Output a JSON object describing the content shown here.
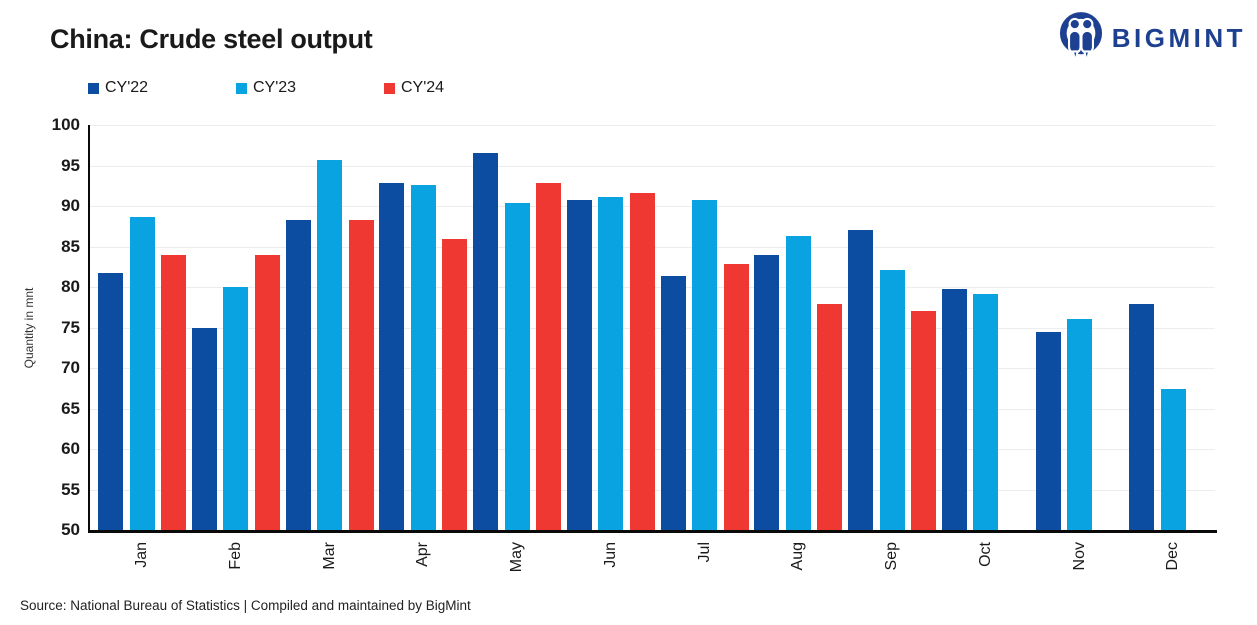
{
  "header": {
    "title": "China: Crude steel output",
    "brand": "BIGMINT",
    "brand_color": "#1D4091",
    "logo_icon": "bigmint-people-icon"
  },
  "legend": [
    {
      "label": "CY'22",
      "color": "#0C4DA2"
    },
    {
      "label": "CY'23",
      "color": "#0AA3E2"
    },
    {
      "label": "CY'24",
      "color": "#EE3831"
    }
  ],
  "footer": {
    "source": "Source: National Bureau of Statistics | Compiled and maintained by BigMint"
  },
  "chart_data": {
    "type": "bar",
    "title": "China: Crude steel output",
    "xlabel": "",
    "ylabel": "Quantity in mnt",
    "ylim": [
      50,
      100
    ],
    "yticks": [
      100,
      95,
      90,
      85,
      80,
      75,
      70,
      65,
      60,
      55,
      50
    ],
    "grid": true,
    "gridline_color": "#ededed",
    "legend_position": "top-left",
    "categories": [
      "Jan",
      "Feb",
      "Mar",
      "Apr",
      "May",
      "Jun",
      "Jul",
      "Aug",
      "Sep",
      "Oct",
      "Nov",
      "Dec"
    ],
    "series": [
      {
        "name": "CY'22",
        "color": "#0C4DA2",
        "values": [
          81.7,
          75.0,
          88.3,
          92.8,
          96.6,
          90.7,
          81.4,
          83.9,
          87.0,
          79.7,
          74.5,
          77.9
        ]
      },
      {
        "name": "CY'23",
        "color": "#0AA3E2",
        "values": [
          88.6,
          80.0,
          95.7,
          92.6,
          90.4,
          91.1,
          90.7,
          86.3,
          82.1,
          79.1,
          76.0,
          67.4
        ]
      },
      {
        "name": "CY'24",
        "color": "#EE3831",
        "values": [
          84.0,
          84.0,
          88.3,
          85.9,
          92.9,
          91.6,
          82.9,
          77.9,
          77.0,
          null,
          null,
          null
        ]
      }
    ]
  }
}
